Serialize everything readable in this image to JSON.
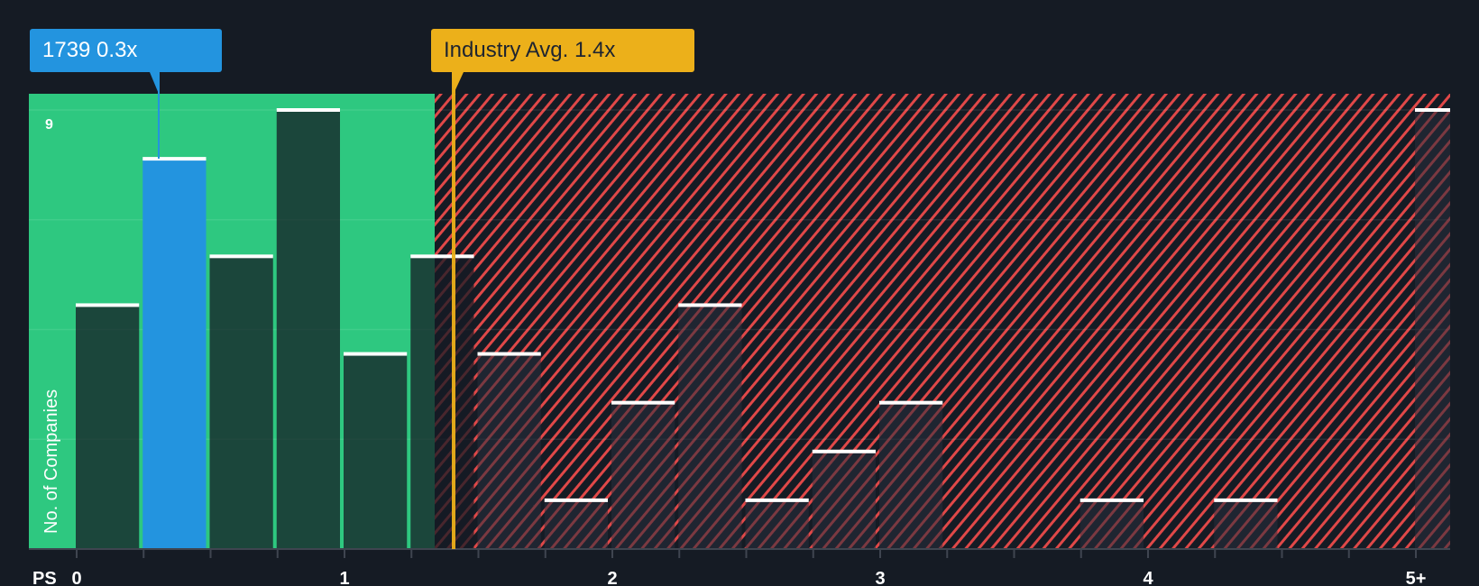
{
  "callouts": {
    "company": {
      "label": "1739 0.3x",
      "value": 0.3,
      "color": "#2394df"
    },
    "industry": {
      "label": "Industry Avg. 1.4x",
      "value": 1.4,
      "color": "#ecb01a"
    }
  },
  "axis": {
    "x_prefix": "PS",
    "x_ticks": [
      "0",
      "1",
      "2",
      "3",
      "4",
      "5+"
    ],
    "y_label": "No. of Companies",
    "y_top_tick": "9"
  },
  "colors": {
    "background": "#151b24",
    "fair_zone": "#2ec880",
    "over_zone_stripe": "#e04848",
    "bar_dark": "#1f4a40",
    "bar_highlight": "#2394df",
    "bar_cap": "#ffffff"
  },
  "chart_data": {
    "type": "bar",
    "title": "",
    "xlabel": "PS",
    "ylabel": "No. of Companies",
    "ylim": [
      0,
      9
    ],
    "bin_width": 0.25,
    "categories": [
      "0-0.25",
      "0.25-0.5",
      "0.5-0.75",
      "0.75-1.0",
      "1.0-1.25",
      "1.25-1.5",
      "1.5-1.75",
      "1.75-2.0",
      "2.0-2.25",
      "2.25-2.5",
      "2.5-2.75",
      "2.75-3.0",
      "3.0-3.25",
      "3.25-3.5",
      "3.5-3.75",
      "3.75-4.0",
      "4.0-4.25",
      "4.25-4.5",
      "4.5-4.75",
      "4.75-5.0",
      "5+"
    ],
    "bin_starts": [
      0,
      0.25,
      0.5,
      0.75,
      1.0,
      1.25,
      1.5,
      1.75,
      2.0,
      2.25,
      2.5,
      2.75,
      3.0,
      3.25,
      3.5,
      3.75,
      4.0,
      4.25,
      4.5,
      4.75,
      5.0
    ],
    "values": [
      5,
      8,
      6,
      9,
      4,
      6,
      4,
      1,
      3,
      5,
      1,
      2,
      3,
      0,
      0,
      1,
      0,
      1,
      0,
      0,
      9
    ],
    "highlight_bin": 1,
    "company_value": 0.3,
    "industry_avg": 1.4,
    "fair_zone_end": 1.35,
    "x_tick_labels": [
      "0",
      "1",
      "2",
      "3",
      "4",
      "5+"
    ],
    "y_tick_labels": [
      "9"
    ],
    "grid": true
  }
}
